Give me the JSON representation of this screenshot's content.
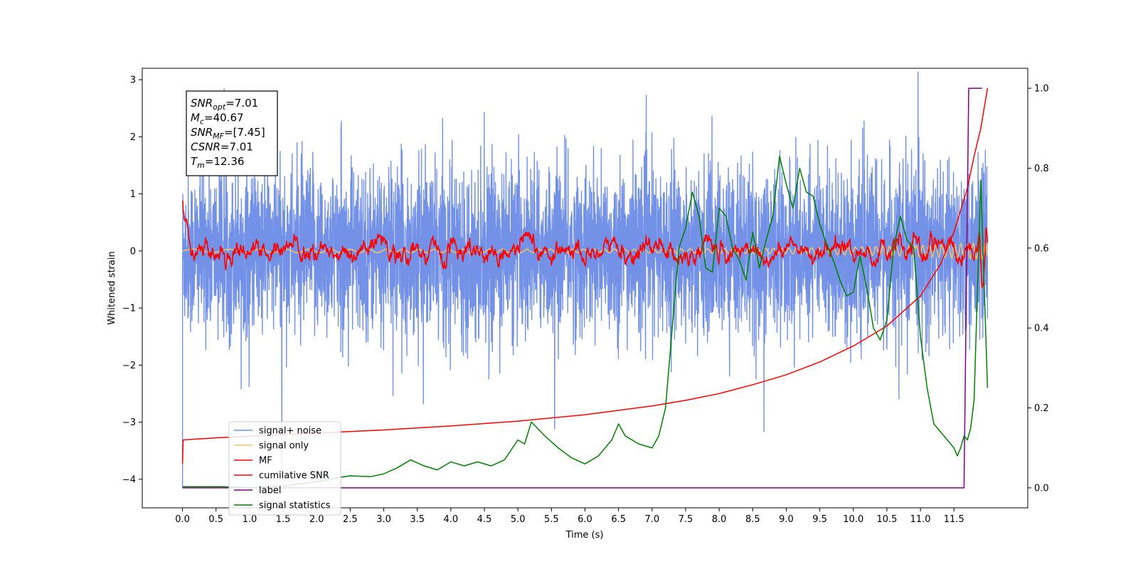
{
  "chart_data": {
    "type": "line",
    "title": "",
    "xlabel": "Time (s)",
    "ylabel": "Whitened strain",
    "y2label": "",
    "xlim": [
      -0.6,
      12.6
    ],
    "ylim": [
      -4.5,
      3.2
    ],
    "y2lim": [
      -0.05,
      1.05
    ],
    "xticks": [
      "0.0",
      "0.5",
      "1.0",
      "1.5",
      "2.0",
      "2.5",
      "3.0",
      "3.5",
      "4.0",
      "4.5",
      "5.0",
      "5.5",
      "6.0",
      "6.5",
      "7.0",
      "7.5",
      "8.0",
      "8.5",
      "9.0",
      "9.5",
      "10.0",
      "10.5",
      "11.0",
      "11.5"
    ],
    "yticks": [
      "3",
      "2",
      "1",
      "0",
      "−1",
      "−2",
      "−3",
      "−4"
    ],
    "y2ticks": [
      "1.0",
      "0.8",
      "0.6",
      "0.4",
      "0.2",
      "0.0"
    ],
    "grid": false,
    "legend_position": "lower-left",
    "annotation": {
      "lines": [
        {
          "sym": "SNR",
          "sub": "opt",
          "text": "=7.01"
        },
        {
          "sym": "M",
          "sub": "c",
          "text": "=40.67"
        },
        {
          "sym": "SNR",
          "sub": "MF",
          "text": "=[7.45]"
        },
        {
          "sym": "CSNR",
          "sub": "",
          "text": "=7.01"
        },
        {
          "sym": "T",
          "sub": "m",
          "text": "=12.36"
        }
      ]
    },
    "series": [
      {
        "name": "signal+ noise",
        "color": "#7391e6",
        "axis": "left",
        "kind": "noise",
        "amplitude": 1.15,
        "t_end": 12.0
      },
      {
        "name": "signal only",
        "color": "#f5c46a",
        "axis": "left",
        "kind": "chirp",
        "t_end": 12.0
      },
      {
        "name": "MF",
        "color": "#ff0000",
        "axis": "left",
        "kind": "mf",
        "t_end": 12.0
      },
      {
        "name": "cumilative SNR",
        "color": "#ff0000",
        "axis": "right",
        "points": [
          [
            0.0,
            0.06
          ],
          [
            0.01,
            0.12
          ],
          [
            0.5,
            0.125
          ],
          [
            1.0,
            0.129
          ],
          [
            2.0,
            0.137
          ],
          [
            3.0,
            0.145
          ],
          [
            4.0,
            0.155
          ],
          [
            5.0,
            0.167
          ],
          [
            6.0,
            0.183
          ],
          [
            7.0,
            0.205
          ],
          [
            7.5,
            0.219
          ],
          [
            8.0,
            0.236
          ],
          [
            8.5,
            0.258
          ],
          [
            9.0,
            0.283
          ],
          [
            9.5,
            0.315
          ],
          [
            10.0,
            0.355
          ],
          [
            10.5,
            0.405
          ],
          [
            11.0,
            0.48
          ],
          [
            11.3,
            0.56
          ],
          [
            11.5,
            0.64
          ],
          [
            11.7,
            0.75
          ],
          [
            11.8,
            0.83
          ],
          [
            11.9,
            0.9
          ],
          [
            11.95,
            0.95
          ],
          [
            12.0,
            1.0
          ]
        ]
      },
      {
        "name": "label",
        "color": "#800080",
        "axis": "right",
        "points": [
          [
            0.0,
            0.0
          ],
          [
            11.65,
            0.0
          ],
          [
            11.72,
            1.0
          ],
          [
            11.92,
            1.0
          ]
        ]
      },
      {
        "name": "signal statistics",
        "color": "#008000",
        "axis": "right",
        "points": [
          [
            0.0,
            0.003
          ],
          [
            0.3,
            0.003
          ],
          [
            0.6,
            0.003
          ],
          [
            1.0,
            0.0
          ],
          [
            1.5,
            0.005
          ],
          [
            2.0,
            0.015
          ],
          [
            2.3,
            0.025
          ],
          [
            2.5,
            0.03
          ],
          [
            2.8,
            0.028
          ],
          [
            3.0,
            0.035
          ],
          [
            3.2,
            0.05
          ],
          [
            3.4,
            0.07
          ],
          [
            3.6,
            0.055
          ],
          [
            3.8,
            0.045
          ],
          [
            4.0,
            0.065
          ],
          [
            4.2,
            0.055
          ],
          [
            4.4,
            0.065
          ],
          [
            4.6,
            0.055
          ],
          [
            4.8,
            0.07
          ],
          [
            5.0,
            0.12
          ],
          [
            5.1,
            0.11
          ],
          [
            5.2,
            0.165
          ],
          [
            5.4,
            0.13
          ],
          [
            5.6,
            0.1
          ],
          [
            5.8,
            0.075
          ],
          [
            6.0,
            0.06
          ],
          [
            6.2,
            0.08
          ],
          [
            6.4,
            0.12
          ],
          [
            6.5,
            0.16
          ],
          [
            6.6,
            0.13
          ],
          [
            6.8,
            0.11
          ],
          [
            7.0,
            0.1
          ],
          [
            7.1,
            0.13
          ],
          [
            7.2,
            0.2
          ],
          [
            7.3,
            0.4
          ],
          [
            7.4,
            0.6
          ],
          [
            7.5,
            0.65
          ],
          [
            7.6,
            0.74
          ],
          [
            7.7,
            0.68
          ],
          [
            7.8,
            0.55
          ],
          [
            7.9,
            0.54
          ],
          [
            8.0,
            0.7
          ],
          [
            8.1,
            0.68
          ],
          [
            8.2,
            0.6
          ],
          [
            8.3,
            0.57
          ],
          [
            8.4,
            0.52
          ],
          [
            8.5,
            0.64
          ],
          [
            8.6,
            0.55
          ],
          [
            8.7,
            0.62
          ],
          [
            8.8,
            0.68
          ],
          [
            8.9,
            0.83
          ],
          [
            9.0,
            0.76
          ],
          [
            9.1,
            0.7
          ],
          [
            9.2,
            0.8
          ],
          [
            9.3,
            0.74
          ],
          [
            9.4,
            0.73
          ],
          [
            9.5,
            0.66
          ],
          [
            9.6,
            0.61
          ],
          [
            9.7,
            0.57
          ],
          [
            9.8,
            0.52
          ],
          [
            9.9,
            0.48
          ],
          [
            10.0,
            0.49
          ],
          [
            10.1,
            0.58
          ],
          [
            10.2,
            0.5
          ],
          [
            10.3,
            0.4
          ],
          [
            10.4,
            0.37
          ],
          [
            10.5,
            0.42
          ],
          [
            10.6,
            0.6
          ],
          [
            10.7,
            0.68
          ],
          [
            10.8,
            0.62
          ],
          [
            10.9,
            0.6
          ],
          [
            11.0,
            0.38
          ],
          [
            11.1,
            0.25
          ],
          [
            11.2,
            0.16
          ],
          [
            11.3,
            0.14
          ],
          [
            11.4,
            0.12
          ],
          [
            11.5,
            0.1
          ],
          [
            11.55,
            0.08
          ],
          [
            11.6,
            0.1
          ],
          [
            11.65,
            0.13
          ],
          [
            11.7,
            0.12
          ],
          [
            11.75,
            0.15
          ],
          [
            11.8,
            0.22
          ],
          [
            11.9,
            0.77
          ],
          [
            12.0,
            0.25
          ]
        ]
      }
    ]
  }
}
